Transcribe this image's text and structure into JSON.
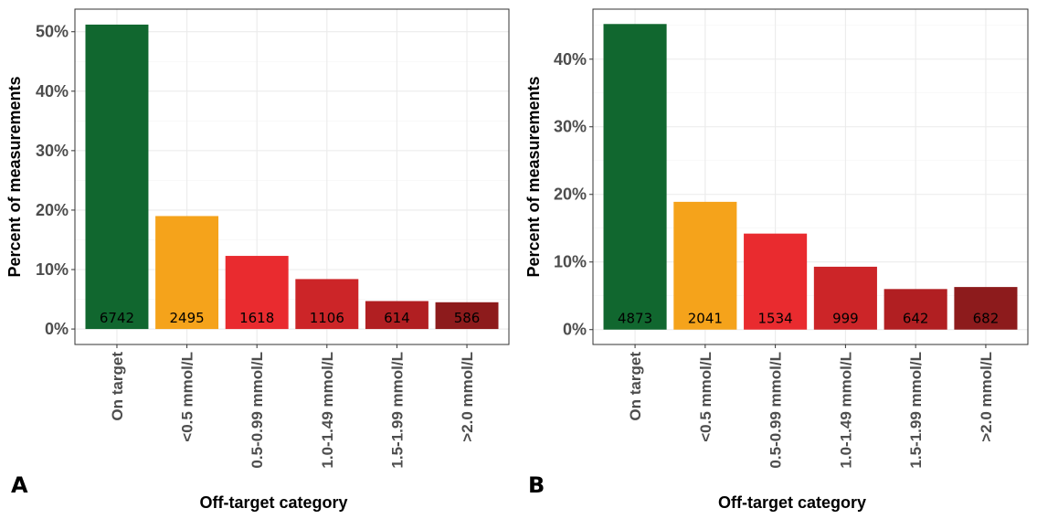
{
  "colors": [
    "#11672f",
    "#f5a31b",
    "#e92b2f",
    "#cc2528",
    "#b11f22",
    "#8d1b1c"
  ],
  "chart_data": [
    {
      "type": "bar",
      "panel_label": "A",
      "categories": [
        "On target",
        "<0.5 mmol/L",
        "0.5-0.99 mmol/L",
        "1.0-1.49 mmol/L",
        "1.5-1.99 mmol/L",
        ">2.0 mmol/L"
      ],
      "values": [
        51.2,
        19.0,
        12.3,
        8.4,
        4.7,
        4.5
      ],
      "data_labels": [
        "6742",
        "2495",
        "1618",
        "1106",
        "614",
        "586"
      ],
      "xlabel": "Off-target category",
      "ylabel": "Percent of measurements",
      "ylim": [
        -2.6,
        53.8
      ],
      "yticks": [
        0,
        10,
        20,
        30,
        40,
        50
      ],
      "ytick_labels": [
        "0%",
        "10%",
        "20%",
        "30%",
        "40%",
        "50%"
      ],
      "grid": true,
      "legend": "none"
    },
    {
      "type": "bar",
      "panel_label": "B",
      "categories": [
        "On target",
        "<0.5 mmol/L",
        "0.5-0.99 mmol/L",
        "1.0-1.49 mmol/L",
        "1.5-1.99 mmol/L",
        ">2.0 mmol/L"
      ],
      "values": [
        45.2,
        18.9,
        14.2,
        9.3,
        6.0,
        6.3
      ],
      "data_labels": [
        "4873",
        "2041",
        "1534",
        "999",
        "642",
        "682"
      ],
      "xlabel": "Off-target category",
      "ylabel": "Percent of measurements",
      "ylim": [
        -2.2,
        47.4
      ],
      "yticks": [
        0,
        10,
        20,
        30,
        40
      ],
      "ytick_labels": [
        "0%",
        "10%",
        "20%",
        "30%",
        "40%"
      ],
      "grid": true,
      "legend": "none"
    }
  ]
}
